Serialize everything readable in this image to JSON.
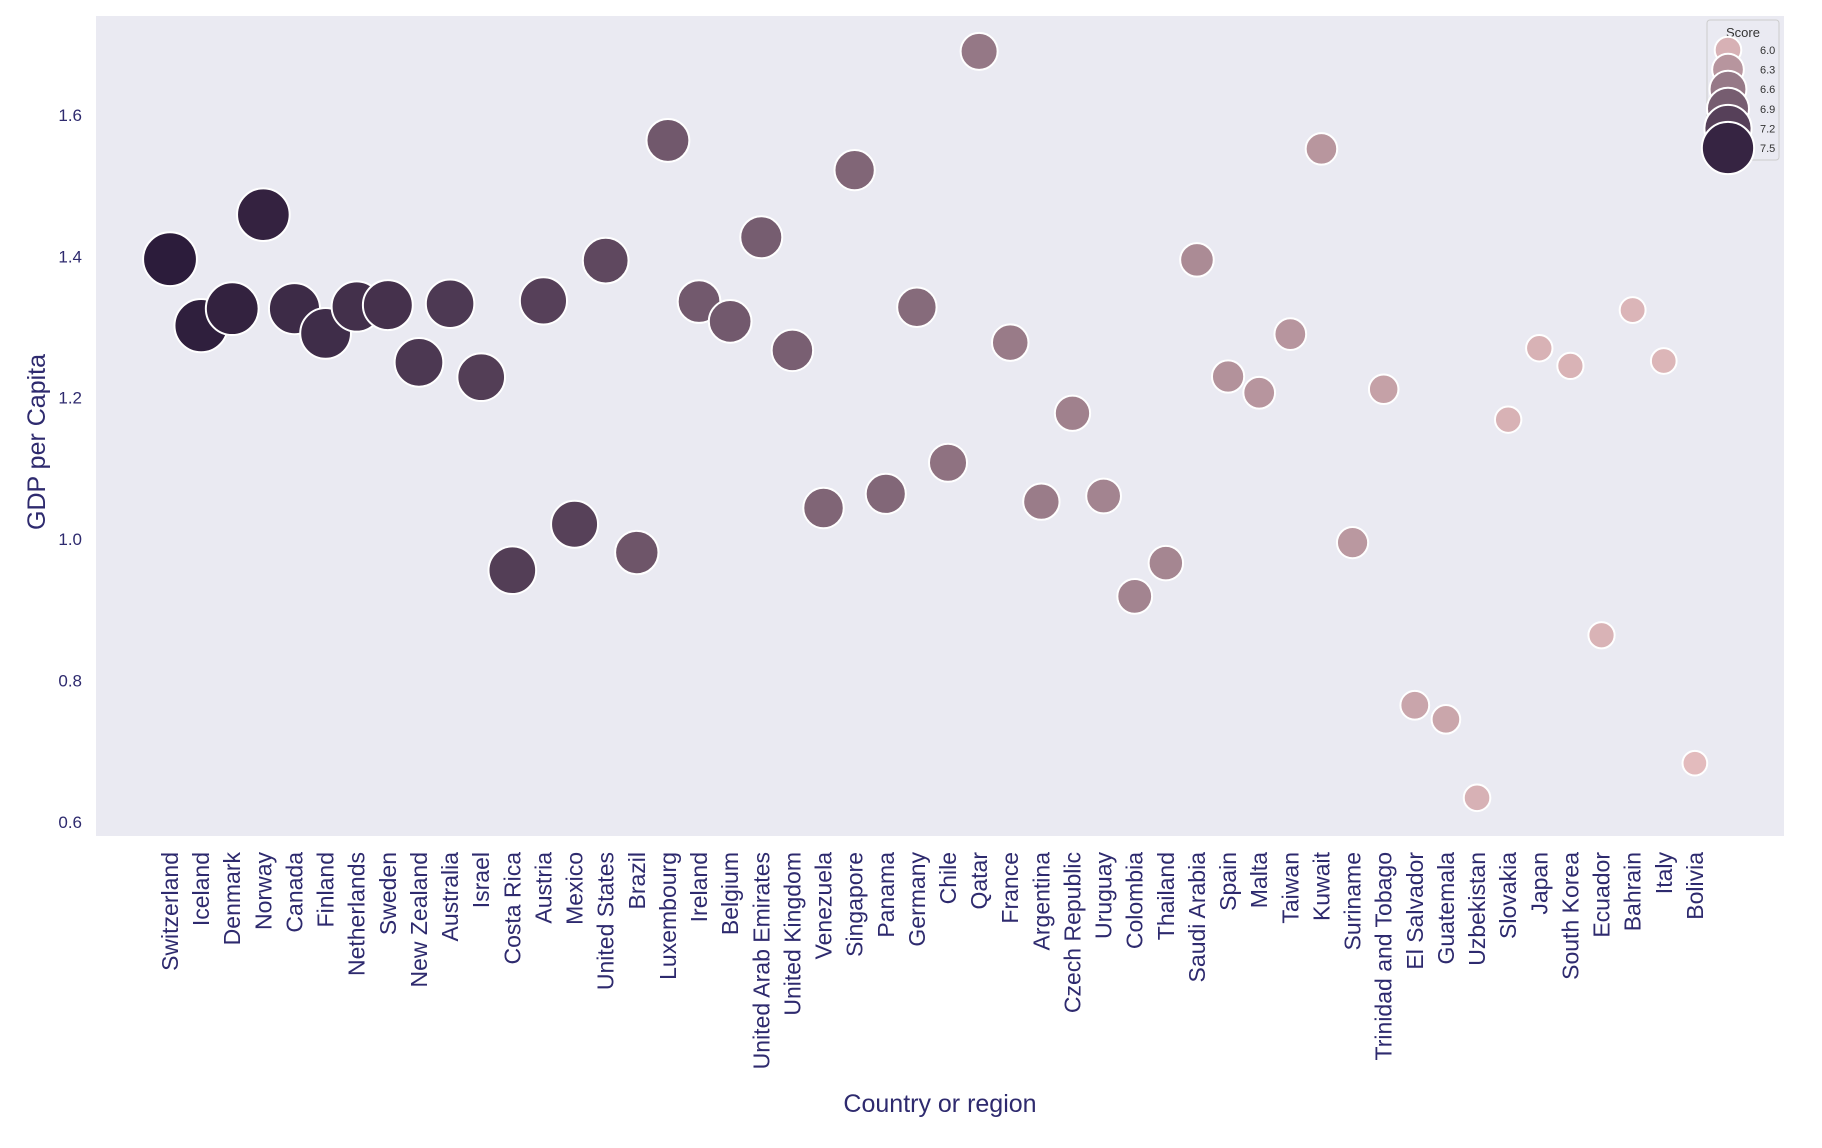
{
  "chart_data": {
    "type": "scatter",
    "xlabel": "Country or region",
    "ylabel": "GDP per Capita",
    "ylim": [
      0.58,
      1.74
    ],
    "yticks": [
      0.6,
      0.8,
      1.0,
      1.2,
      1.4,
      1.6
    ],
    "grid": false,
    "legend": {
      "title": "Score",
      "placement": "top-right",
      "entries": [
        {
          "label": "6.0",
          "score": 6.0
        },
        {
          "label": "6.3",
          "score": 6.3
        },
        {
          "label": "6.6",
          "score": 6.6
        },
        {
          "label": "6.9",
          "score": 6.9
        },
        {
          "label": "7.2",
          "score": 7.2
        },
        {
          "label": "7.5",
          "score": 7.5
        }
      ]
    },
    "color_low": "#e7bfc0",
    "color_high": "#2b1b3a",
    "points": [
      {
        "x": "Switzerland",
        "y": 1.396,
        "score": 7.59
      },
      {
        "x": "Iceland",
        "y": 1.302,
        "score": 7.56
      },
      {
        "x": "Denmark",
        "y": 1.326,
        "score": 7.53
      },
      {
        "x": "Norway",
        "y": 1.459,
        "score": 7.52
      },
      {
        "x": "Canada",
        "y": 1.326,
        "score": 7.43
      },
      {
        "x": "Finland",
        "y": 1.291,
        "score": 7.41
      },
      {
        "x": "Netherlands",
        "y": 1.329,
        "score": 7.38
      },
      {
        "x": "Sweden",
        "y": 1.331,
        "score": 7.36
      },
      {
        "x": "New Zealand",
        "y": 1.25,
        "score": 7.29
      },
      {
        "x": "Australia",
        "y": 1.333,
        "score": 7.28
      },
      {
        "x": "Israel",
        "y": 1.229,
        "score": 7.23
      },
      {
        "x": "Costa Rica",
        "y": 0.956,
        "score": 7.23
      },
      {
        "x": "Austria",
        "y": 1.337,
        "score": 7.2
      },
      {
        "x": "Mexico",
        "y": 1.021,
        "score": 7.19
      },
      {
        "x": "United States",
        "y": 1.394,
        "score": 7.12
      },
      {
        "x": "Brazil",
        "y": 0.981,
        "score": 6.98
      },
      {
        "x": "Luxembourg",
        "y": 1.564,
        "score": 6.95
      },
      {
        "x": "Ireland",
        "y": 1.336,
        "score": 6.94
      },
      {
        "x": "Belgium",
        "y": 1.308,
        "score": 6.94
      },
      {
        "x": "United Arab Emirates",
        "y": 1.427,
        "score": 6.9
      },
      {
        "x": "United Kingdom",
        "y": 1.267,
        "score": 6.87
      },
      {
        "x": "Venezuela",
        "y": 1.044,
        "score": 6.81
      },
      {
        "x": "Singapore",
        "y": 1.522,
        "score": 6.8
      },
      {
        "x": "Panama",
        "y": 1.064,
        "score": 6.79
      },
      {
        "x": "Germany",
        "y": 1.328,
        "score": 6.75
      },
      {
        "x": "Chile",
        "y": 1.108,
        "score": 6.67
      },
      {
        "x": "Qatar",
        "y": 1.69,
        "score": 6.61
      },
      {
        "x": "France",
        "y": 1.278,
        "score": 6.58
      },
      {
        "x": "Argentina",
        "y": 1.053,
        "score": 6.57
      },
      {
        "x": "Czech Republic",
        "y": 1.178,
        "score": 6.51
      },
      {
        "x": "Uruguay",
        "y": 1.061,
        "score": 6.48
      },
      {
        "x": "Colombia",
        "y": 0.919,
        "score": 6.48
      },
      {
        "x": "Thailand",
        "y": 0.966,
        "score": 6.46
      },
      {
        "x": "Saudi Arabia",
        "y": 1.395,
        "score": 6.41
      },
      {
        "x": "Spain",
        "y": 1.23,
        "score": 6.33
      },
      {
        "x": "Malta",
        "y": 1.207,
        "score": 6.3
      },
      {
        "x": "Taiwan",
        "y": 1.29,
        "score": 6.3
      },
      {
        "x": "Kuwait",
        "y": 1.552,
        "score": 6.29
      },
      {
        "x": "Suriname",
        "y": 0.995,
        "score": 6.27
      },
      {
        "x": "Trinidad and Tobago",
        "y": 1.212,
        "score": 6.17
      },
      {
        "x": "El Salvador",
        "y": 0.765,
        "score": 6.13
      },
      {
        "x": "Guatemala",
        "y": 0.745,
        "score": 6.12
      },
      {
        "x": "Uzbekistan",
        "y": 0.634,
        "score": 6.0
      },
      {
        "x": "Slovakia",
        "y": 1.169,
        "score": 5.99
      },
      {
        "x": "Japan",
        "y": 1.27,
        "score": 5.99
      },
      {
        "x": "South Korea",
        "y": 1.245,
        "score": 5.98
      },
      {
        "x": "Ecuador",
        "y": 0.864,
        "score": 5.98
      },
      {
        "x": "Bahrain",
        "y": 1.324,
        "score": 5.96
      },
      {
        "x": "Italy",
        "y": 1.252,
        "score": 5.95
      },
      {
        "x": "Bolivia",
        "y": 0.683,
        "score": 5.89
      }
    ]
  }
}
